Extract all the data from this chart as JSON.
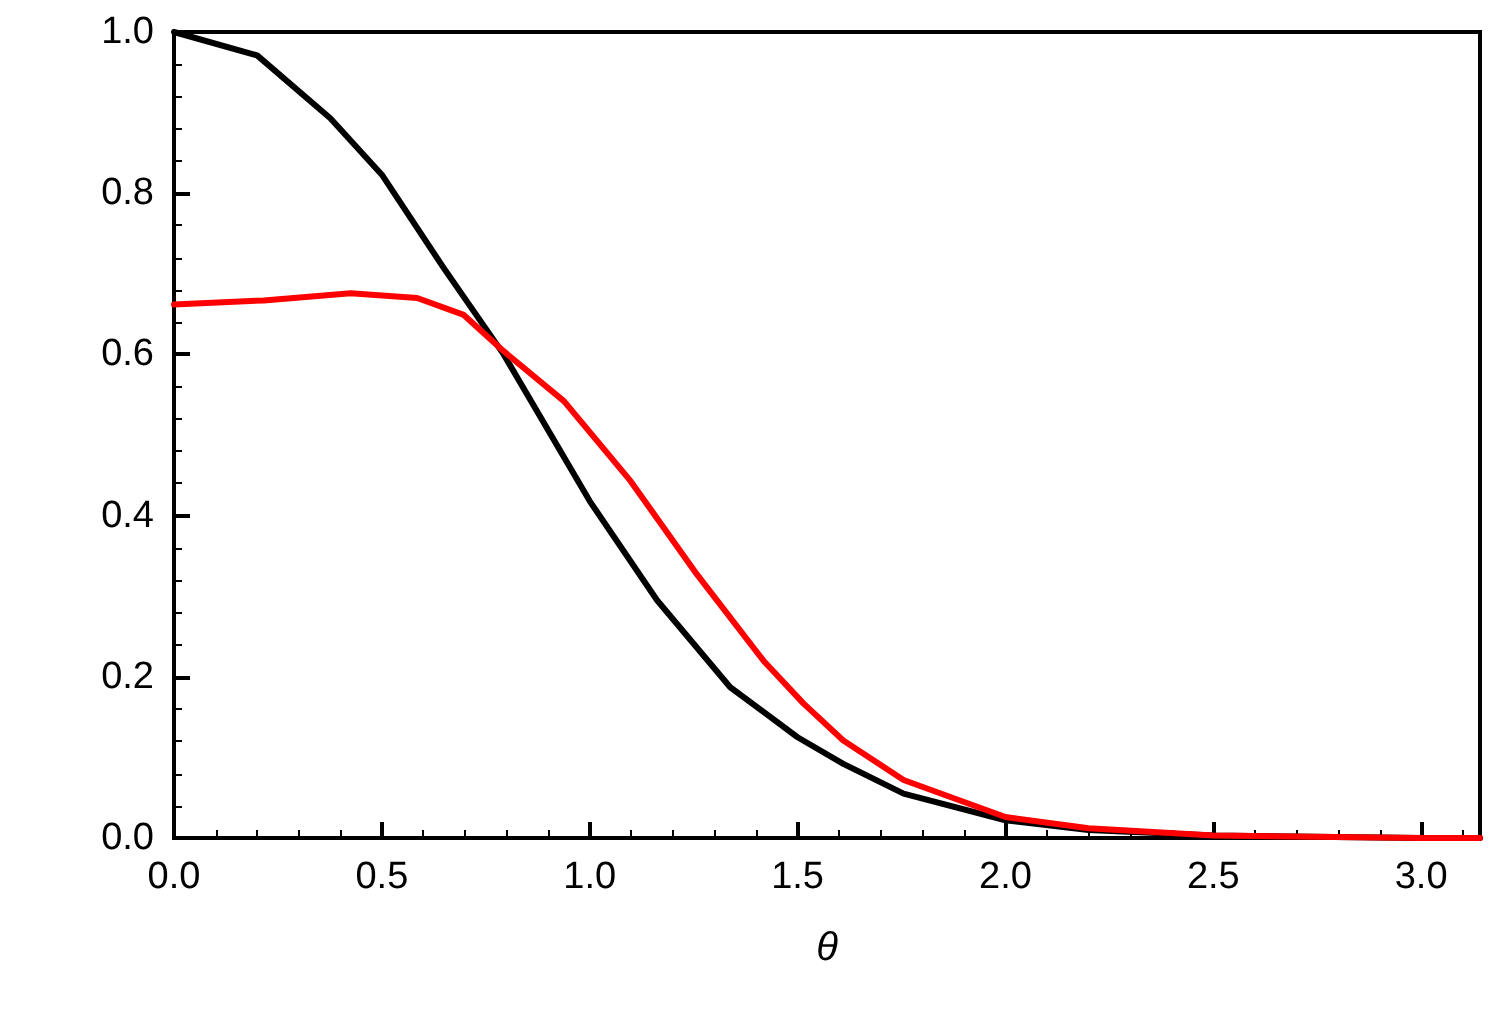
{
  "chart_data": {
    "type": "line",
    "xlabel": "θ",
    "xlim": [
      0,
      3.14159
    ],
    "xticks": [
      {
        "value": 0,
        "label": "0.0"
      },
      {
        "value": 0.5,
        "label": "0.5"
      },
      {
        "value": 1,
        "label": "1.0"
      },
      {
        "value": 1.5,
        "label": "1.5"
      },
      {
        "value": 2,
        "label": "2.0"
      },
      {
        "value": 2.5,
        "label": "2.5"
      },
      {
        "value": 3,
        "label": "3.0"
      }
    ],
    "ylim": [
      0,
      1
    ],
    "yticks": [
      {
        "value": 0,
        "label": "0.0"
      },
      0.2,
      0.4,
      0.6,
      0.8,
      {
        "value": 1,
        "label": "1.0"
      }
    ],
    "grid": false,
    "marker": "none",
    "line_style": "solid",
    "series": [
      {
        "color": "#000000",
        "x": [
          0,
          0.2,
          0.376,
          0.5,
          0.649,
          0.793,
          1.0,
          1.162,
          1.338,
          1.5,
          1.61,
          1.755,
          2.0,
          2.2,
          2.5,
          3.0,
          3.14159
        ],
        "values": [
          1.0,
          0.971,
          0.893,
          0.823,
          0.707,
          0.6,
          0.418,
          0.295,
          0.187,
          0.125,
          0.092,
          0.055,
          0.022,
          0.01,
          0.003,
          0,
          0
        ]
      },
      {
        "color": "#ff0000",
        "x": [
          0,
          0.216,
          0.425,
          0.585,
          0.697,
          0.793,
          0.938,
          1.098,
          1.258,
          1.418,
          1.514,
          1.61,
          1.755,
          2.0,
          2.2,
          2.5,
          3.0,
          3.14159
        ],
        "values": [
          0.662,
          0.667,
          0.676,
          0.67,
          0.649,
          0.604,
          0.542,
          0.443,
          0.327,
          0.22,
          0.167,
          0.121,
          0.072,
          0.026,
          0.012,
          0.003,
          0,
          0
        ]
      }
    ]
  }
}
